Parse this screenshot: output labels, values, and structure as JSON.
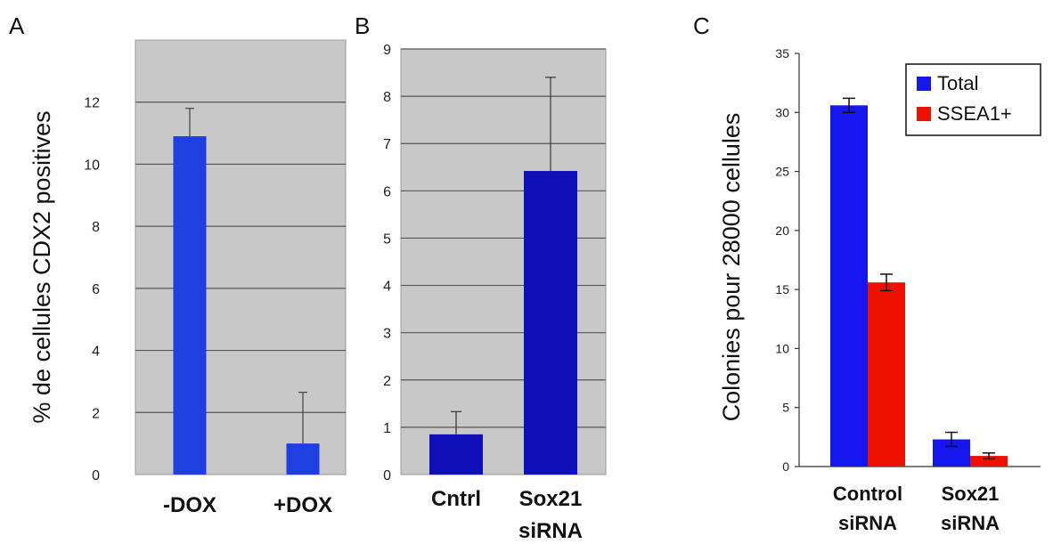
{
  "colors": {
    "blue": "#1f3fe0",
    "navy": "#1010b8",
    "bright_blue": "#1515ee",
    "red": "#ee1100",
    "plot_bg": "#c8c8c8",
    "grid": "#555555"
  },
  "chart_data": [
    {
      "panel": "A",
      "type": "bar",
      "ylabel": "% de cellules CDX2 positives",
      "categories": [
        "-DOX",
        "+DOX"
      ],
      "values": [
        10.9,
        1.0
      ],
      "errors": [
        0.9,
        1.65
      ],
      "ylim": [
        0,
        14
      ],
      "yticks": [
        0,
        2,
        4,
        6,
        8,
        10,
        12
      ],
      "grid": true,
      "color": "#1f3fe0"
    },
    {
      "panel": "B",
      "type": "bar",
      "ylabel": "",
      "categories": [
        [
          "Cntrl"
        ],
        [
          "Sox21",
          "siRNA"
        ]
      ],
      "values": [
        0.85,
        6.42
      ],
      "errors": [
        0.48,
        1.98
      ],
      "ylim": [
        0,
        9
      ],
      "yticks": [
        0,
        1,
        2,
        3,
        4,
        5,
        6,
        7,
        8,
        9
      ],
      "grid": true,
      "color": "#1010b8"
    },
    {
      "panel": "C",
      "type": "bar",
      "ylabel": "Colonies pour 28000 cellules",
      "categories": [
        [
          "Control",
          "siRNA"
        ],
        [
          "Sox21",
          "siRNA"
        ]
      ],
      "series": [
        {
          "name": "Total",
          "values": [
            30.6,
            2.3
          ],
          "errors": [
            0.6,
            0.6
          ],
          "color": "#1515ee"
        },
        {
          "name": "SSEA1+",
          "values": [
            15.6,
            0.9
          ],
          "errors": [
            0.7,
            0.25
          ],
          "color": "#ee1100"
        }
      ],
      "ylim": [
        0,
        35
      ],
      "yticks": [
        0,
        5,
        10,
        15,
        20,
        25,
        30,
        35
      ],
      "grid": false,
      "legend": "top-right"
    }
  ]
}
